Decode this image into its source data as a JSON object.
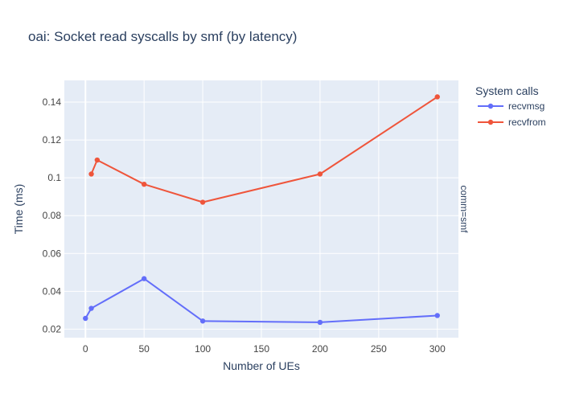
{
  "chart_data": {
    "type": "line",
    "title": "oai: Socket read syscalls by smf (by latency)",
    "xlabel": "Number of UEs",
    "ylabel": "Time (ms)",
    "facet_label": "comm=smf",
    "xlim": [
      -18,
      318
    ],
    "ylim": [
      0.0155,
      0.1515
    ],
    "xticks": [
      0,
      50,
      100,
      150,
      200,
      250,
      300
    ],
    "yticks": [
      0.02,
      0.04,
      0.06,
      0.08,
      0.1,
      0.12,
      0.14
    ],
    "ytick_labels": [
      "0.02",
      "0.04",
      "0.06",
      "0.08",
      "0.1",
      "0.12",
      "0.14"
    ],
    "grid": true,
    "legend": {
      "title": "System calls",
      "position": "right"
    },
    "series": [
      {
        "name": "recvmsg",
        "color": "#636efa",
        "x": [
          0,
          5,
          50,
          100,
          200,
          300
        ],
        "y": [
          0.0257,
          0.031,
          0.0467,
          0.0243,
          0.0236,
          0.0272
        ]
      },
      {
        "name": "recvfrom",
        "color": "#ef553b",
        "x": [
          5,
          10,
          50,
          100,
          200,
          300
        ],
        "y": [
          0.102,
          0.1094,
          0.0966,
          0.0871,
          0.102,
          0.1428
        ]
      }
    ],
    "colors": {
      "plot_bg": "#e5ecf6",
      "grid": "#ffffff",
      "text": "#2a3f5f",
      "tick_text": "#444444"
    }
  }
}
